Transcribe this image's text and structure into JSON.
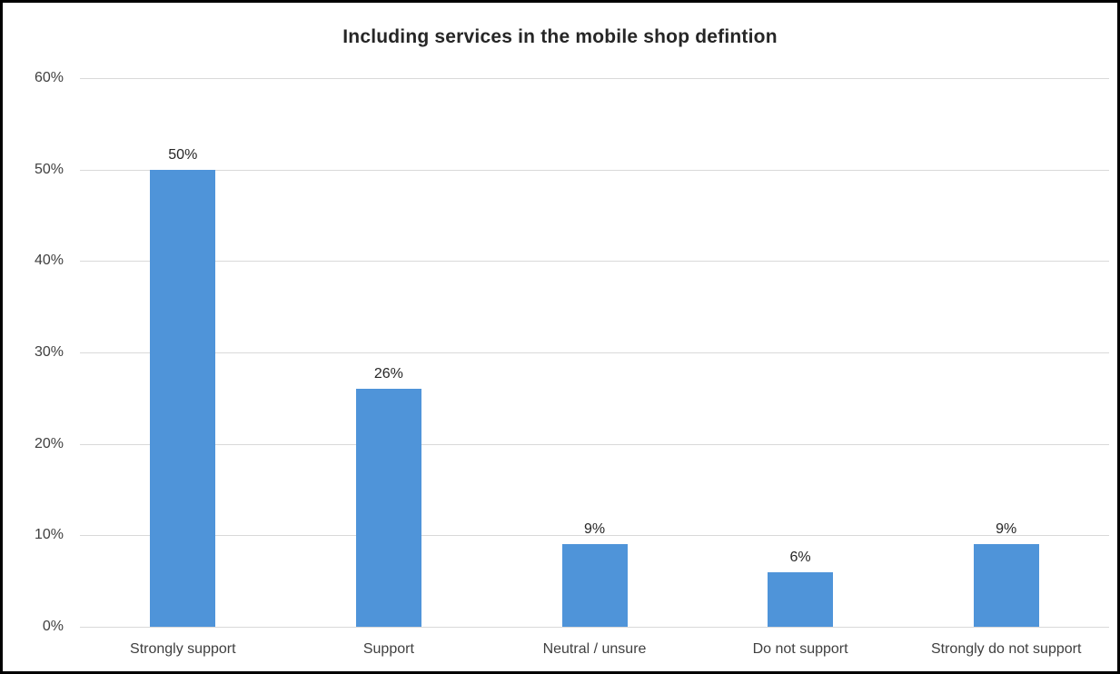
{
  "chart_data": {
    "type": "bar",
    "title": "Including services in the mobile shop defintion",
    "categories": [
      "Strongly support",
      "Support",
      "Neutral / unsure",
      "Do not support",
      "Strongly do not support"
    ],
    "values": [
      50,
      26,
      9,
      6,
      9
    ],
    "data_labels": [
      "50%",
      "26%",
      "9%",
      "6%",
      "9%"
    ],
    "xlabel": "",
    "ylabel": "",
    "ylim": [
      0,
      60
    ],
    "y_tick_values": [
      0,
      10,
      20,
      30,
      40,
      50,
      60
    ],
    "y_tick_labels": [
      "0%",
      "10%",
      "20%",
      "30%",
      "40%",
      "50%",
      "60%"
    ],
    "grid": true,
    "legend": "none",
    "colors": {
      "bar_fill": "#4f94d9",
      "gridline": "#d9d9d9",
      "axis_text": "#404040",
      "title_text": "#262626",
      "frame_border": "#000000",
      "background": "#ffffff"
    }
  }
}
